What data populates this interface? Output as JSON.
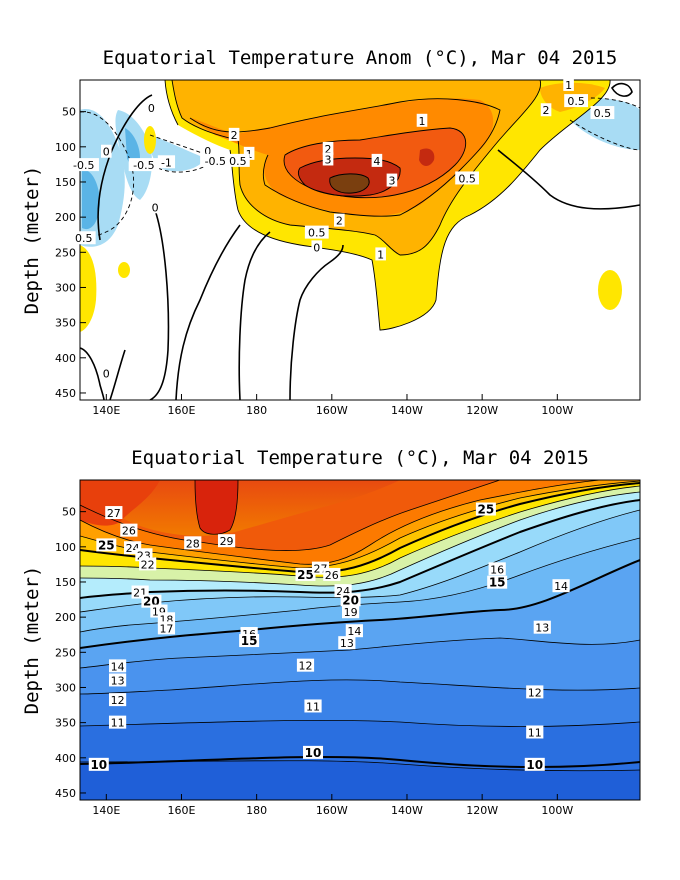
{
  "chart_data": [
    {
      "type": "heatmap",
      "title": "Equatorial Temperature Anom (°C), Mar 04 2015",
      "ylabel": "Depth (meter)",
      "x_ticks": [
        "140E",
        "160E",
        "180",
        "160W",
        "140W",
        "120W",
        "100W"
      ],
      "x_tick_lon": [
        140,
        160,
        180,
        200,
        220,
        240,
        260
      ],
      "y_ticks": [
        "50",
        "100",
        "150",
        "200",
        "250",
        "300",
        "350",
        "400",
        "450"
      ],
      "y_tick_depth": [
        50,
        100,
        150,
        200,
        250,
        300,
        350,
        400,
        450
      ],
      "xlim": [
        133,
        282
      ],
      "ylim": [
        5,
        460
      ],
      "fill_levels": [
        {
          "label": "-1",
          "color": "#5ab4e6"
        },
        {
          "label": "-0.5",
          "color": "#a8dcf4"
        },
        {
          "label": "0.5",
          "color": "#ffe600"
        },
        {
          "label": "1",
          "color": "#ffb300"
        },
        {
          "label": "2",
          "color": "#ff8a00"
        },
        {
          "label": "3",
          "color": "#f25a10"
        },
        {
          "label": "4",
          "color": "#c42a10"
        },
        {
          "label": "5",
          "color": "#7a3f0f"
        }
      ],
      "contour_labels": [
        {
          "text": "0",
          "lon": 152,
          "depth": 45,
          "bold": false
        },
        {
          "text": "2",
          "lon": 174,
          "depth": 83,
          "bold": false
        },
        {
          "text": "1",
          "lon": 224,
          "depth": 63,
          "bold": false
        },
        {
          "text": "2",
          "lon": 257,
          "depth": 48,
          "bold": false
        },
        {
          "text": "1",
          "lon": 263,
          "depth": 12,
          "bold": false
        },
        {
          "text": "0.5",
          "lon": 265,
          "depth": 35,
          "bold": false
        },
        {
          "text": "0.5",
          "lon": 272,
          "depth": 52,
          "bold": false
        },
        {
          "text": "0",
          "lon": 140,
          "depth": 107,
          "bold": false
        },
        {
          "text": "-0.5",
          "lon": 150,
          "depth": 126,
          "bold": false
        },
        {
          "text": "-1",
          "lon": 156,
          "depth": 122,
          "bold": false
        },
        {
          "text": "0",
          "lon": 167,
          "depth": 106,
          "bold": false
        },
        {
          "text": "-0.5",
          "lon": 169,
          "depth": 120,
          "bold": false
        },
        {
          "text": "-0.5",
          "lon": 134,
          "depth": 126,
          "bold": false
        },
        {
          "text": "1",
          "lon": 178,
          "depth": 110,
          "bold": false
        },
        {
          "text": "0.5",
          "lon": 175,
          "depth": 120,
          "bold": false
        },
        {
          "text": "2",
          "lon": 199,
          "depth": 103,
          "bold": false
        },
        {
          "text": "3",
          "lon": 199,
          "depth": 118,
          "bold": false
        },
        {
          "text": "4",
          "lon": 212,
          "depth": 120,
          "bold": false
        },
        {
          "text": "3",
          "lon": 216,
          "depth": 148,
          "bold": false
        },
        {
          "text": "0.5",
          "lon": 236,
          "depth": 145,
          "bold": false
        },
        {
          "text": "2",
          "lon": 202,
          "depth": 205,
          "bold": false
        },
        {
          "text": "0.5",
          "lon": 196,
          "depth": 222,
          "bold": false
        },
        {
          "text": "0",
          "lon": 196,
          "depth": 243,
          "bold": false
        },
        {
          "text": "1",
          "lon": 213,
          "depth": 253,
          "bold": false
        },
        {
          "text": "0.5",
          "lon": 134,
          "depth": 230,
          "bold": false
        },
        {
          "text": "0",
          "lon": 140,
          "depth": 422,
          "bold": false
        },
        {
          "text": "0",
          "lon": 153,
          "depth": 186,
          "bold": false
        }
      ]
    },
    {
      "type": "heatmap",
      "title": "Equatorial Temperature (°C), Mar 04 2015",
      "ylabel": "Depth (meter)",
      "x_ticks": [
        "140E",
        "160E",
        "180",
        "160W",
        "140W",
        "120W",
        "100W"
      ],
      "x_tick_lon": [
        140,
        160,
        180,
        200,
        220,
        240,
        260
      ],
      "y_ticks": [
        "50",
        "100",
        "150",
        "200",
        "250",
        "300",
        "350",
        "400",
        "450"
      ],
      "y_tick_depth": [
        50,
        100,
        150,
        200,
        250,
        300,
        350,
        400,
        450
      ],
      "xlim": [
        133,
        282
      ],
      "ylim": [
        5,
        460
      ],
      "fill_levels": [
        {
          "label": "10",
          "color": "#1f5fd8"
        },
        {
          "label": "11",
          "color": "#2a6fe0"
        },
        {
          "label": "12",
          "color": "#3a82e8"
        },
        {
          "label": "13",
          "color": "#4a93ee"
        },
        {
          "label": "14",
          "color": "#5aa4f2"
        },
        {
          "label": "15",
          "color": "#6cb8f5"
        },
        {
          "label": "16",
          "color": "#80c8f8"
        },
        {
          "label": "18",
          "color": "#98dafa"
        },
        {
          "label": "20",
          "color": "#b4ecfc"
        },
        {
          "label": "22",
          "color": "#d8f2a8"
        },
        {
          "label": "24",
          "color": "#ffe600"
        },
        {
          "label": "25",
          "color": "#ffc400"
        },
        {
          "label": "26",
          "color": "#ffa000"
        },
        {
          "label": "27",
          "color": "#fc7a00"
        },
        {
          "label": "28",
          "color": "#f05a0a"
        },
        {
          "label": "29",
          "color": "#d8230c"
        }
      ],
      "contour_labels": [
        {
          "text": "27",
          "lon": 142,
          "depth": 52,
          "bold": false
        },
        {
          "text": "26",
          "lon": 146,
          "depth": 77,
          "bold": false
        },
        {
          "text": "25",
          "lon": 140,
          "depth": 98,
          "bold": true
        },
        {
          "text": "24",
          "lon": 147,
          "depth": 102,
          "bold": false
        },
        {
          "text": "23",
          "lon": 150,
          "depth": 112,
          "bold": false
        },
        {
          "text": "22",
          "lon": 151,
          "depth": 125,
          "bold": false
        },
        {
          "text": "28",
          "lon": 163,
          "depth": 95,
          "bold": false
        },
        {
          "text": "29",
          "lon": 172,
          "depth": 92,
          "bold": false
        },
        {
          "text": "21",
          "lon": 149,
          "depth": 165,
          "bold": false
        },
        {
          "text": "20",
          "lon": 152,
          "depth": 178,
          "bold": true
        },
        {
          "text": "19",
          "lon": 154,
          "depth": 192,
          "bold": false
        },
        {
          "text": "18",
          "lon": 156,
          "depth": 203,
          "bold": false
        },
        {
          "text": "17",
          "lon": 156,
          "depth": 216,
          "bold": false
        },
        {
          "text": "25",
          "lon": 193,
          "depth": 140,
          "bold": true
        },
        {
          "text": "27",
          "lon": 197,
          "depth": 131,
          "bold": false
        },
        {
          "text": "26",
          "lon": 200,
          "depth": 140,
          "bold": false
        },
        {
          "text": "24",
          "lon": 203,
          "depth": 163,
          "bold": false
        },
        {
          "text": "20",
          "lon": 205,
          "depth": 176,
          "bold": true
        },
        {
          "text": "19",
          "lon": 205,
          "depth": 193,
          "bold": false
        },
        {
          "text": "16",
          "lon": 178,
          "depth": 224,
          "bold": false
        },
        {
          "text": "15",
          "lon": 178,
          "depth": 234,
          "bold": true
        },
        {
          "text": "14",
          "lon": 206,
          "depth": 220,
          "bold": false
        },
        {
          "text": "13",
          "lon": 204,
          "depth": 237,
          "bold": false
        },
        {
          "text": "25",
          "lon": 241,
          "depth": 47,
          "bold": true
        },
        {
          "text": "16",
          "lon": 244,
          "depth": 132,
          "bold": false
        },
        {
          "text": "15",
          "lon": 244,
          "depth": 151,
          "bold": true
        },
        {
          "text": "14",
          "lon": 261,
          "depth": 156,
          "bold": false
        },
        {
          "text": "13",
          "lon": 256,
          "depth": 215,
          "bold": false
        },
        {
          "text": "12",
          "lon": 254,
          "depth": 307,
          "bold": false
        },
        {
          "text": "11",
          "lon": 254,
          "depth": 364,
          "bold": false
        },
        {
          "text": "10",
          "lon": 254,
          "depth": 410,
          "bold": true
        },
        {
          "text": "14",
          "lon": 143,
          "depth": 270,
          "bold": false
        },
        {
          "text": "13",
          "lon": 143,
          "depth": 290,
          "bold": false
        },
        {
          "text": "12",
          "lon": 143,
          "depth": 318,
          "bold": false
        },
        {
          "text": "11",
          "lon": 143,
          "depth": 350,
          "bold": false
        },
        {
          "text": "10",
          "lon": 138,
          "depth": 410,
          "bold": true
        },
        {
          "text": "12",
          "lon": 193,
          "depth": 269,
          "bold": false
        },
        {
          "text": "11",
          "lon": 195,
          "depth": 327,
          "bold": false
        },
        {
          "text": "10",
          "lon": 195,
          "depth": 393,
          "bold": true
        }
      ]
    }
  ]
}
